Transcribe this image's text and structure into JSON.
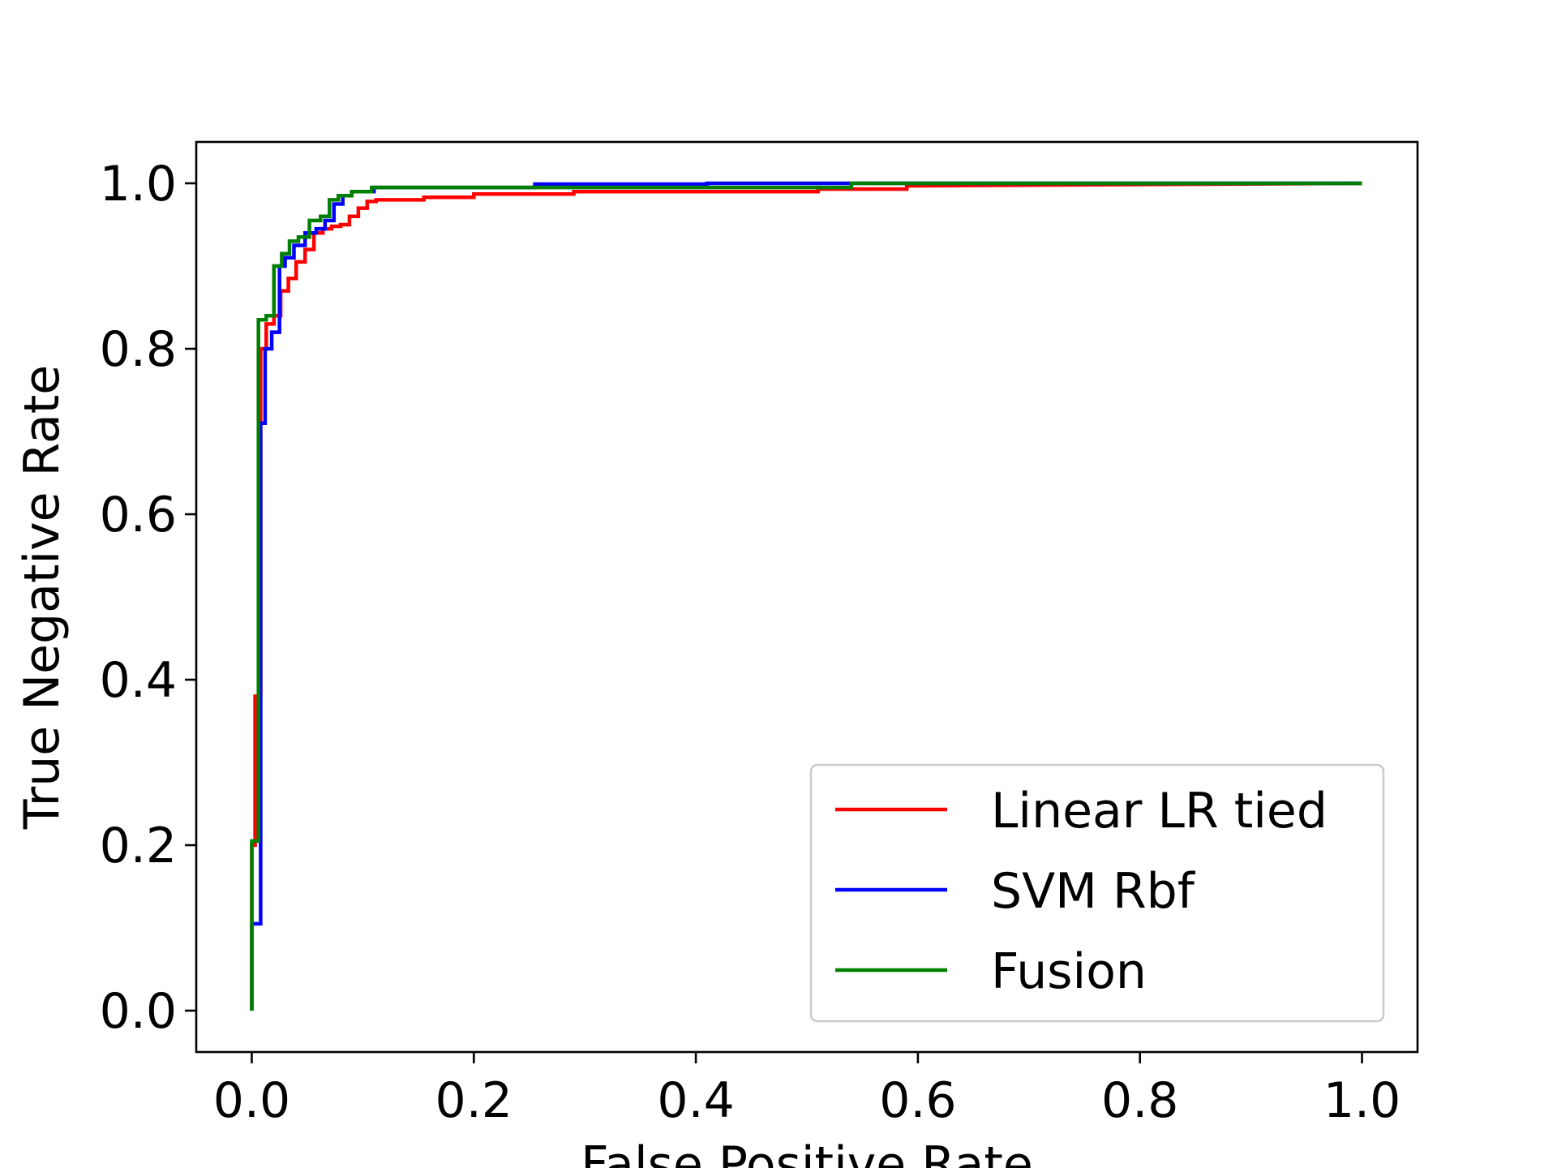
{
  "chart_data": {
    "type": "line",
    "title": "",
    "xlabel": "False Positive Rate",
    "ylabel": "True Negative Rate",
    "xlim": [
      -0.05,
      1.05
    ],
    "ylim": [
      -0.05,
      1.05
    ],
    "xticks": [
      0.0,
      0.2,
      0.4,
      0.6,
      0.8,
      1.0
    ],
    "yticks": [
      0.0,
      0.2,
      0.4,
      0.6,
      0.8,
      1.0
    ],
    "xtick_labels": [
      "0.0",
      "0.2",
      "0.4",
      "0.6",
      "0.8",
      "1.0"
    ],
    "ytick_labels": [
      "0.0",
      "0.2",
      "0.4",
      "0.6",
      "0.8",
      "1.0"
    ],
    "grid": false,
    "legend": {
      "position": "lower-right"
    },
    "step": true,
    "series": [
      {
        "name": "Linear LR tied",
        "color": "#ff0000",
        "x": [
          0.0,
          0.0,
          0.003,
          0.003,
          0.008,
          0.008,
          0.013,
          0.013,
          0.02,
          0.02,
          0.026,
          0.026,
          0.033,
          0.033,
          0.04,
          0.04,
          0.048,
          0.048,
          0.056,
          0.056,
          0.064,
          0.064,
          0.072,
          0.072,
          0.08,
          0.08,
          0.088,
          0.088,
          0.096,
          0.096,
          0.104,
          0.104,
          0.112,
          0.112,
          0.155,
          0.155,
          0.2,
          0.2,
          0.29,
          0.29,
          0.51,
          0.51,
          0.59,
          0.59,
          1.0
        ],
        "y": [
          0.0,
          0.2,
          0.2,
          0.38,
          0.38,
          0.8,
          0.8,
          0.83,
          0.83,
          0.84,
          0.84,
          0.87,
          0.87,
          0.885,
          0.885,
          0.905,
          0.905,
          0.92,
          0.92,
          0.94,
          0.94,
          0.945,
          0.945,
          0.948,
          0.948,
          0.95,
          0.95,
          0.96,
          0.96,
          0.97,
          0.97,
          0.978,
          0.978,
          0.98,
          0.98,
          0.983,
          0.983,
          0.987,
          0.987,
          0.99,
          0.99,
          0.993,
          0.993,
          0.997,
          1.0
        ]
      },
      {
        "name": "SVM Rbf",
        "color": "#0000ff",
        "x": [
          0.0,
          0.0,
          0.008,
          0.008,
          0.012,
          0.012,
          0.018,
          0.018,
          0.025,
          0.025,
          0.03,
          0.03,
          0.038,
          0.038,
          0.048,
          0.048,
          0.058,
          0.058,
          0.066,
          0.066,
          0.074,
          0.074,
          0.082,
          0.082,
          0.09,
          0.09,
          0.11,
          0.11,
          0.255,
          0.255,
          0.41,
          0.41,
          1.0
        ],
        "y": [
          0.0,
          0.105,
          0.105,
          0.71,
          0.71,
          0.8,
          0.8,
          0.82,
          0.82,
          0.9,
          0.9,
          0.91,
          0.91,
          0.925,
          0.925,
          0.94,
          0.94,
          0.945,
          0.945,
          0.955,
          0.955,
          0.975,
          0.975,
          0.985,
          0.985,
          0.99,
          0.99,
          0.995,
          0.995,
          0.999,
          0.999,
          1.0,
          1.0
        ]
      },
      {
        "name": "Fusion",
        "color": "#008000",
        "x": [
          0.0,
          0.0,
          0.006,
          0.006,
          0.013,
          0.013,
          0.02,
          0.02,
          0.027,
          0.027,
          0.034,
          0.034,
          0.042,
          0.042,
          0.052,
          0.052,
          0.062,
          0.062,
          0.07,
          0.07,
          0.078,
          0.078,
          0.09,
          0.09,
          0.108,
          0.108,
          0.54,
          0.54,
          1.0
        ],
        "y": [
          0.0,
          0.205,
          0.205,
          0.835,
          0.835,
          0.84,
          0.84,
          0.9,
          0.9,
          0.915,
          0.915,
          0.93,
          0.93,
          0.935,
          0.935,
          0.955,
          0.955,
          0.96,
          0.96,
          0.98,
          0.98,
          0.985,
          0.985,
          0.99,
          0.99,
          0.995,
          0.995,
          1.0,
          1.0
        ]
      }
    ]
  }
}
